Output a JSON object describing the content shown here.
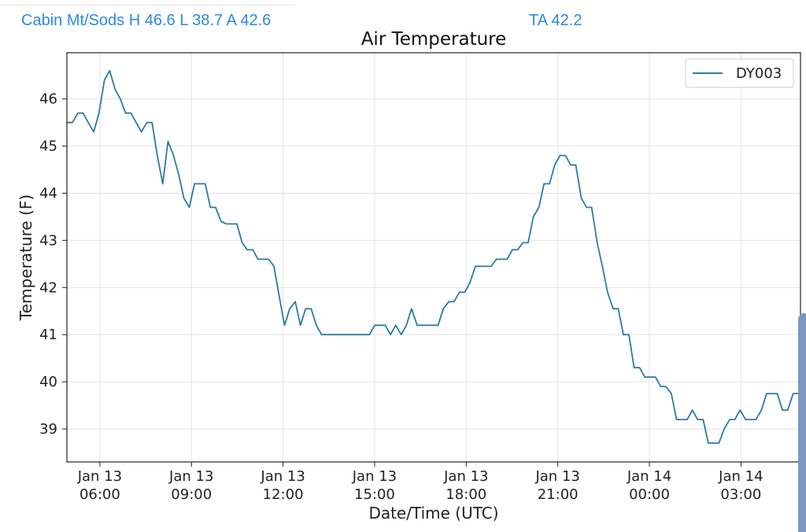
{
  "header": {
    "stats_text": "Cabin Mt/Sods H 46.6 L 38.7 A 42.6",
    "ta_text": "TA 42.2"
  },
  "colors": {
    "accent": "#2a8be0",
    "series": "#2e7ba1",
    "grid": "#e4e4e4",
    "scroll_handle": "#7f97bf"
  },
  "chart_data": {
    "type": "line",
    "title": "Air Temperature",
    "xlabel": "Date/Time (UTC)",
    "ylabel": "Temperature (F)",
    "ylim": [
      38.3,
      46.98
    ],
    "xlim": [
      4.92,
      28.95
    ],
    "x_unit": "hours since 2024-01-13 00:00 UTC (axis shows Jan 13 06:00 ... Jan 14 03:00)",
    "grid": true,
    "legend_position": "top-right",
    "yticks": [
      39,
      40,
      41,
      42,
      43,
      44,
      45,
      46
    ],
    "xticks": [
      {
        "value": 6,
        "line1": "Jan 13",
        "line2": "06:00"
      },
      {
        "value": 9,
        "line1": "Jan 13",
        "line2": "09:00"
      },
      {
        "value": 12,
        "line1": "Jan 13",
        "line2": "12:00"
      },
      {
        "value": 15,
        "line1": "Jan 13",
        "line2": "15:00"
      },
      {
        "value": 18,
        "line1": "Jan 13",
        "line2": "18:00"
      },
      {
        "value": 21,
        "line1": "Jan 13",
        "line2": "21:00"
      },
      {
        "value": 24,
        "line1": "Jan 14",
        "line2": "00:00"
      },
      {
        "value": 27,
        "line1": "Jan 14",
        "line2": "03:00"
      }
    ],
    "series": [
      {
        "name": "DY003",
        "points": [
          [
            4.93,
            45.5
          ],
          [
            5.1,
            45.5
          ],
          [
            5.28,
            45.7
          ],
          [
            5.45,
            45.7
          ],
          [
            5.62,
            45.5
          ],
          [
            5.8,
            45.3
          ],
          [
            5.97,
            45.7
          ],
          [
            6.15,
            46.4
          ],
          [
            6.32,
            46.6
          ],
          [
            6.5,
            46.2
          ],
          [
            6.67,
            46.0
          ],
          [
            6.84,
            45.7
          ],
          [
            7.02,
            45.7
          ],
          [
            7.19,
            45.5
          ],
          [
            7.36,
            45.3
          ],
          [
            7.54,
            45.5
          ],
          [
            7.71,
            45.5
          ],
          [
            7.88,
            44.8
          ],
          [
            8.06,
            44.2
          ],
          [
            8.23,
            45.1
          ],
          [
            8.41,
            44.8
          ],
          [
            8.58,
            44.4
          ],
          [
            8.75,
            43.9
          ],
          [
            8.93,
            43.7
          ],
          [
            9.1,
            44.2
          ],
          [
            9.27,
            44.2
          ],
          [
            9.45,
            44.2
          ],
          [
            9.62,
            43.7
          ],
          [
            9.79,
            43.7
          ],
          [
            9.97,
            43.4
          ],
          [
            10.14,
            43.35
          ],
          [
            10.31,
            43.35
          ],
          [
            10.49,
            43.35
          ],
          [
            10.66,
            42.95
          ],
          [
            10.83,
            42.8
          ],
          [
            11.01,
            42.8
          ],
          [
            11.18,
            42.6
          ],
          [
            11.36,
            42.6
          ],
          [
            11.53,
            42.6
          ],
          [
            11.7,
            42.45
          ],
          [
            11.88,
            41.8
          ],
          [
            12.05,
            41.2
          ],
          [
            12.22,
            41.55
          ],
          [
            12.4,
            41.7
          ],
          [
            12.57,
            41.2
          ],
          [
            12.74,
            41.55
          ],
          [
            12.92,
            41.55
          ],
          [
            13.09,
            41.2
          ],
          [
            13.26,
            41.0
          ],
          [
            13.44,
            41.0
          ],
          [
            13.61,
            41.0
          ],
          [
            13.78,
            41.0
          ],
          [
            13.96,
            41.0
          ],
          [
            14.13,
            41.0
          ],
          [
            14.31,
            41.0
          ],
          [
            14.48,
            41.0
          ],
          [
            14.65,
            41.0
          ],
          [
            14.83,
            41.0
          ],
          [
            15.0,
            41.2
          ],
          [
            15.17,
            41.2
          ],
          [
            15.35,
            41.2
          ],
          [
            15.52,
            41.0
          ],
          [
            15.69,
            41.2
          ],
          [
            15.87,
            41.0
          ],
          [
            16.04,
            41.2
          ],
          [
            16.21,
            41.55
          ],
          [
            16.39,
            41.2
          ],
          [
            16.56,
            41.2
          ],
          [
            16.73,
            41.2
          ],
          [
            16.91,
            41.2
          ],
          [
            17.08,
            41.2
          ],
          [
            17.25,
            41.55
          ],
          [
            17.43,
            41.7
          ],
          [
            17.6,
            41.7
          ],
          [
            17.78,
            41.9
          ],
          [
            17.95,
            41.9
          ],
          [
            18.12,
            42.1
          ],
          [
            18.3,
            42.45
          ],
          [
            18.47,
            42.45
          ],
          [
            18.64,
            42.45
          ],
          [
            18.82,
            42.45
          ],
          [
            18.99,
            42.6
          ],
          [
            19.16,
            42.6
          ],
          [
            19.34,
            42.6
          ],
          [
            19.51,
            42.8
          ],
          [
            19.68,
            42.8
          ],
          [
            19.86,
            42.95
          ],
          [
            20.03,
            42.95
          ],
          [
            20.2,
            43.5
          ],
          [
            20.38,
            43.7
          ],
          [
            20.55,
            44.2
          ],
          [
            20.73,
            44.2
          ],
          [
            20.9,
            44.6
          ],
          [
            21.07,
            44.8
          ],
          [
            21.25,
            44.8
          ],
          [
            21.42,
            44.6
          ],
          [
            21.59,
            44.6
          ],
          [
            21.77,
            43.9
          ],
          [
            21.94,
            43.7
          ],
          [
            22.11,
            43.7
          ],
          [
            22.29,
            42.95
          ],
          [
            22.46,
            42.45
          ],
          [
            22.63,
            41.9
          ],
          [
            22.81,
            41.55
          ],
          [
            22.98,
            41.55
          ],
          [
            23.15,
            41.0
          ],
          [
            23.33,
            41.0
          ],
          [
            23.5,
            40.3
          ],
          [
            23.68,
            40.3
          ],
          [
            23.85,
            40.1
          ],
          [
            24.02,
            40.1
          ],
          [
            24.2,
            40.1
          ],
          [
            24.37,
            39.9
          ],
          [
            24.54,
            39.9
          ],
          [
            24.72,
            39.75
          ],
          [
            24.89,
            39.2
          ],
          [
            25.06,
            39.2
          ],
          [
            25.24,
            39.2
          ],
          [
            25.41,
            39.4
          ],
          [
            25.58,
            39.2
          ],
          [
            25.76,
            39.2
          ],
          [
            25.93,
            38.7
          ],
          [
            26.1,
            38.7
          ],
          [
            26.28,
            38.7
          ],
          [
            26.45,
            39.0
          ],
          [
            26.63,
            39.2
          ],
          [
            26.8,
            39.2
          ],
          [
            26.97,
            39.4
          ],
          [
            27.15,
            39.2
          ],
          [
            27.32,
            39.2
          ],
          [
            27.49,
            39.2
          ],
          [
            27.67,
            39.4
          ],
          [
            27.84,
            39.75
          ],
          [
            28.01,
            39.75
          ],
          [
            28.19,
            39.75
          ],
          [
            28.36,
            39.4
          ],
          [
            28.53,
            39.4
          ],
          [
            28.71,
            39.75
          ],
          [
            28.88,
            39.75
          ],
          [
            29.05,
            39.9
          ],
          [
            29.23,
            40.1
          ],
          [
            29.4,
            40.1
          ]
        ]
      }
    ]
  }
}
